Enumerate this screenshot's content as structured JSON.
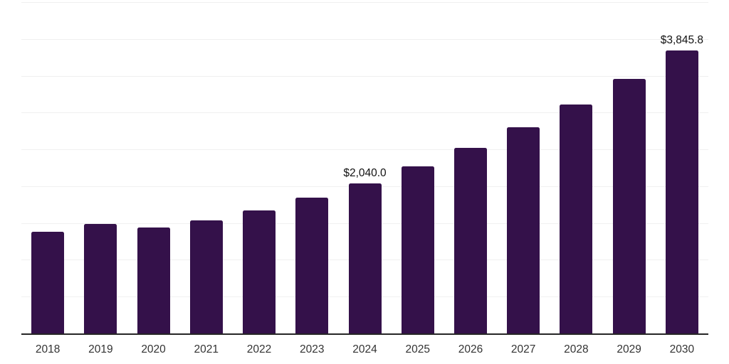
{
  "chart_data": {
    "type": "bar",
    "title": "",
    "xlabel": "",
    "ylabel": "",
    "categories": [
      "2018",
      "2019",
      "2020",
      "2021",
      "2022",
      "2023",
      "2024",
      "2025",
      "2026",
      "2027",
      "2028",
      "2029",
      "2030"
    ],
    "values": [
      1380,
      1490,
      1440,
      1535,
      1675,
      1840,
      2040,
      2267,
      2520,
      2801,
      3113,
      3460,
      3845.8
    ],
    "data_labels": [
      "",
      "",
      "",
      "",
      "",
      "",
      "$2,040.0",
      "",
      "",
      "",
      "",
      "",
      "$3,845.8"
    ],
    "ylim": [
      0,
      4500
    ],
    "gridline_step": 500,
    "grid": "horizontal",
    "legend": "none",
    "colors": {
      "bar": "#34114A",
      "gridline": "#F0F0F0",
      "axis": "#262626",
      "tick_label": "#333333",
      "data_label": "#111111",
      "background": "#FFFFFF"
    }
  }
}
